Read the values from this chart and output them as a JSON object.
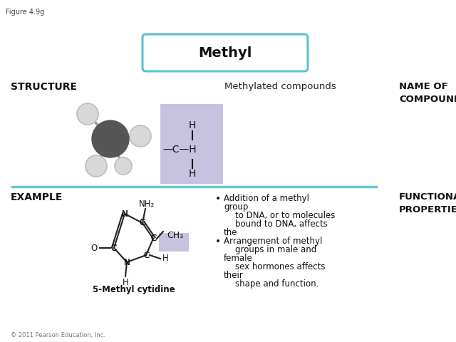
{
  "figure_label": "Figure 4.9g",
  "title": "Methyl",
  "title_box_color": "#5bbfd4",
  "title_box_fill": "#ffffff",
  "structure_label": "STRUCTURE",
  "example_label": "EXAMPLE",
  "name_label": "NAME OF\nCOMPOUND",
  "functional_label": "FUNCTIONAL\nPROPERTIES",
  "methylated_label": "Methylated compounds",
  "compound_name": "5-Methyl cytidine",
  "copyright": "© 2011 Pearson Education, Inc.",
  "structure_box_color": "#b3aed6",
  "example_box_color": "#b3aed6",
  "divider_color": "#6bc5d2",
  "bg_color": "#ffffff"
}
